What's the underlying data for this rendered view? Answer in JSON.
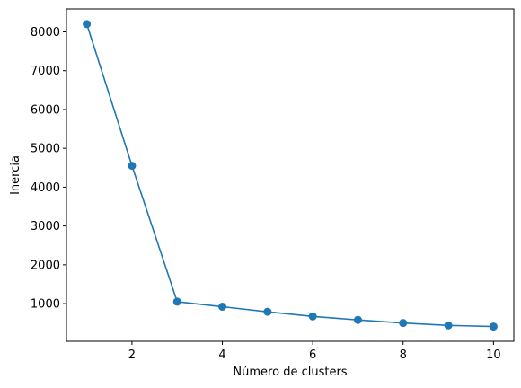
{
  "chart_data": {
    "type": "line",
    "title": "",
    "xlabel": "Número de clusters",
    "ylabel": "Inercia",
    "xlim": [
      0.55,
      10.45
    ],
    "ylim": [
      30,
      8590
    ],
    "xticks": [
      2,
      4,
      6,
      8,
      10
    ],
    "xtick_labels": [
      "2",
      "4",
      "6",
      "8",
      "10"
    ],
    "yticks": [
      1000,
      2000,
      3000,
      4000,
      5000,
      6000,
      7000,
      8000
    ],
    "ytick_labels": [
      "1000",
      "2000",
      "3000",
      "4000",
      "5000",
      "6000",
      "7000",
      "8000"
    ],
    "grid": false,
    "legend": "none",
    "series": [
      {
        "color": "#1f77b4",
        "marker": "circle",
        "x": [
          1,
          2,
          3,
          4,
          5,
          6,
          7,
          8,
          9,
          10
        ],
        "y": [
          8200,
          4550,
          1050,
          920,
          790,
          670,
          580,
          500,
          440,
          410
        ]
      }
    ]
  }
}
